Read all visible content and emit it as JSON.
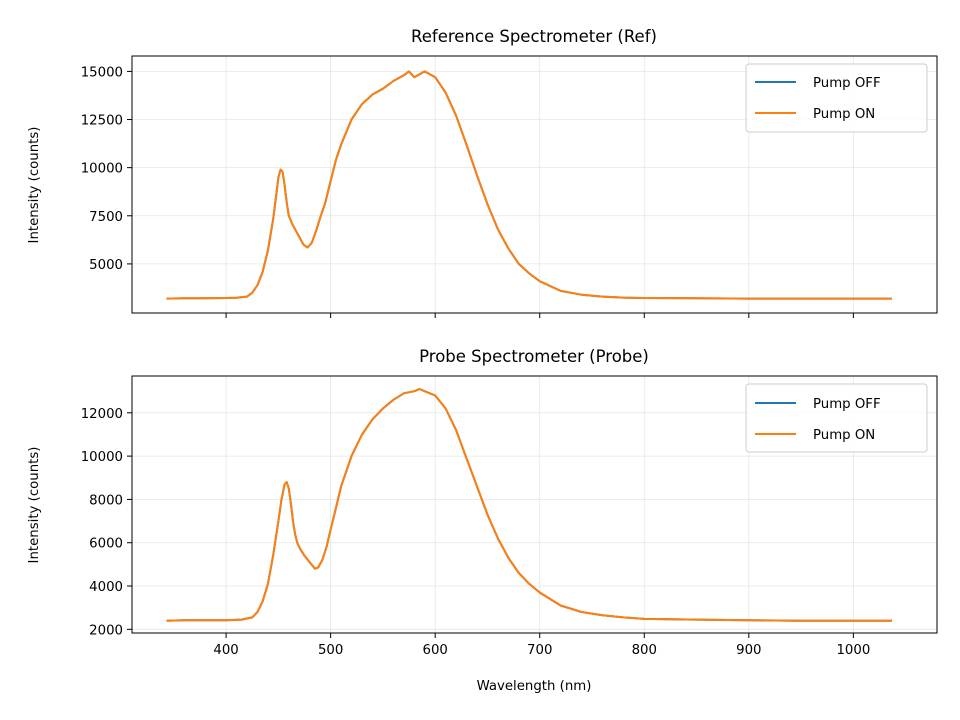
{
  "chart_data": [
    {
      "type": "line",
      "title": "Reference Spectrometer (Ref)",
      "xlabel": "",
      "ylabel": "Intensity (counts)",
      "xlim": [
        310,
        1080
      ],
      "ylim": [
        2450,
        15800
      ],
      "xticks": [
        400,
        500,
        600,
        700,
        800,
        900,
        1000
      ],
      "xtick_labels_visible": false,
      "yticks": [
        5000,
        7500,
        10000,
        12500,
        15000
      ],
      "grid": true,
      "legend": "top-right",
      "series": [
        {
          "name": "Pump OFF",
          "color": "#1f77b4",
          "x": [
            343,
            360,
            380,
            400,
            410,
            420,
            425,
            430,
            435,
            440,
            445,
            448,
            450,
            452,
            454,
            456,
            458,
            460,
            463,
            466,
            470,
            474,
            478,
            482,
            486,
            490,
            495,
            500,
            505,
            510,
            520,
            530,
            540,
            550,
            560,
            570,
            575,
            580,
            590,
            600,
            610,
            620,
            630,
            640,
            650,
            660,
            670,
            680,
            690,
            700,
            720,
            740,
            760,
            780,
            800,
            850,
            900,
            950,
            1000,
            1037
          ],
          "y": [
            3200,
            3220,
            3220,
            3230,
            3240,
            3300,
            3500,
            3900,
            4600,
            5700,
            7300,
            8600,
            9500,
            9900,
            9800,
            9100,
            8200,
            7500,
            7100,
            6800,
            6400,
            6000,
            5850,
            6100,
            6700,
            7400,
            8200,
            9300,
            10400,
            11200,
            12500,
            13300,
            13800,
            14100,
            14500,
            14800,
            15000,
            14700,
            15000,
            14700,
            13900,
            12700,
            11200,
            9600,
            8100,
            6800,
            5800,
            5000,
            4500,
            4100,
            3600,
            3400,
            3300,
            3250,
            3230,
            3220,
            3200,
            3200,
            3200,
            3200
          ]
        },
        {
          "name": "Pump ON",
          "color": "#ff7f0e",
          "x": [
            343,
            360,
            380,
            400,
            410,
            420,
            425,
            430,
            435,
            440,
            445,
            448,
            450,
            452,
            454,
            456,
            458,
            460,
            463,
            466,
            470,
            474,
            478,
            482,
            486,
            490,
            495,
            500,
            505,
            510,
            520,
            530,
            540,
            550,
            560,
            570,
            575,
            580,
            590,
            600,
            610,
            620,
            630,
            640,
            650,
            660,
            670,
            680,
            690,
            700,
            720,
            740,
            760,
            780,
            800,
            850,
            900,
            950,
            1000,
            1037
          ],
          "y": [
            3200,
            3220,
            3220,
            3230,
            3240,
            3300,
            3500,
            3900,
            4600,
            5700,
            7300,
            8600,
            9500,
            9900,
            9800,
            9100,
            8200,
            7500,
            7100,
            6800,
            6400,
            6000,
            5850,
            6100,
            6700,
            7400,
            8200,
            9300,
            10400,
            11200,
            12500,
            13300,
            13800,
            14100,
            14500,
            14800,
            15000,
            14700,
            15000,
            14700,
            13900,
            12700,
            11200,
            9600,
            8100,
            6800,
            5800,
            5000,
            4500,
            4100,
            3600,
            3400,
            3300,
            3250,
            3230,
            3220,
            3200,
            3200,
            3200,
            3200
          ]
        }
      ]
    },
    {
      "type": "line",
      "title": "Probe Spectrometer (Probe)",
      "xlabel": "Wavelength (nm)",
      "ylabel": "Intensity (counts)",
      "xlim": [
        310,
        1080
      ],
      "ylim": [
        1830,
        13700
      ],
      "xticks": [
        400,
        500,
        600,
        700,
        800,
        900,
        1000
      ],
      "xtick_labels_visible": true,
      "yticks": [
        2000,
        4000,
        6000,
        8000,
        10000,
        12000
      ],
      "grid": true,
      "legend": "top-right",
      "series": [
        {
          "name": "Pump OFF",
          "color": "#1f77b4",
          "x": [
            343,
            360,
            380,
            400,
            415,
            425,
            430,
            435,
            440,
            445,
            450,
            453,
            456,
            458,
            460,
            462,
            464,
            466,
            468,
            471,
            475,
            480,
            485,
            488,
            492,
            496,
            500,
            505,
            510,
            520,
            530,
            540,
            550,
            560,
            570,
            580,
            585,
            590,
            600,
            610,
            620,
            630,
            640,
            650,
            660,
            670,
            680,
            690,
            700,
            720,
            740,
            760,
            780,
            800,
            850,
            900,
            950,
            1000,
            1037
          ],
          "y": [
            2400,
            2420,
            2420,
            2420,
            2450,
            2550,
            2800,
            3300,
            4100,
            5400,
            7000,
            8000,
            8700,
            8800,
            8500,
            7800,
            7000,
            6400,
            6000,
            5700,
            5400,
            5100,
            4800,
            4850,
            5200,
            5800,
            6600,
            7600,
            8600,
            10000,
            11000,
            11700,
            12200,
            12600,
            12900,
            13000,
            13100,
            13000,
            12800,
            12200,
            11200,
            9900,
            8600,
            7300,
            6200,
            5300,
            4600,
            4100,
            3700,
            3100,
            2800,
            2650,
            2550,
            2480,
            2450,
            2420,
            2400,
            2400,
            2400
          ]
        },
        {
          "name": "Pump ON",
          "color": "#ff7f0e",
          "x": [
            343,
            360,
            380,
            400,
            415,
            425,
            430,
            435,
            440,
            445,
            450,
            453,
            456,
            458,
            460,
            462,
            464,
            466,
            468,
            471,
            475,
            480,
            485,
            488,
            492,
            496,
            500,
            505,
            510,
            520,
            530,
            540,
            550,
            560,
            570,
            580,
            585,
            590,
            600,
            610,
            620,
            630,
            640,
            650,
            660,
            670,
            680,
            690,
            700,
            720,
            740,
            760,
            780,
            800,
            850,
            900,
            950,
            1000,
            1037
          ],
          "y": [
            2400,
            2420,
            2420,
            2420,
            2450,
            2550,
            2800,
            3300,
            4100,
            5400,
            7000,
            8000,
            8700,
            8800,
            8500,
            7800,
            7000,
            6400,
            6000,
            5700,
            5400,
            5100,
            4800,
            4850,
            5200,
            5800,
            6600,
            7600,
            8600,
            10000,
            11000,
            11700,
            12200,
            12600,
            12900,
            13000,
            13100,
            13000,
            12800,
            12200,
            11200,
            9900,
            8600,
            7300,
            6200,
            5300,
            4600,
            4100,
            3700,
            3100,
            2800,
            2650,
            2550,
            2480,
            2450,
            2420,
            2400,
            2400,
            2400
          ]
        }
      ]
    }
  ]
}
